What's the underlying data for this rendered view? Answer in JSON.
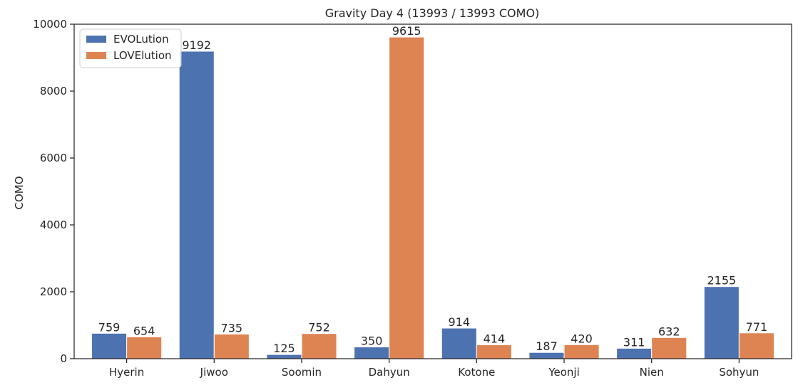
{
  "chart_data": {
    "type": "bar",
    "title": "Gravity Day 4 (13993 / 13993 COMO)",
    "xlabel": "",
    "ylabel": "COMO",
    "ylim": [
      0,
      10000
    ],
    "yticks": [
      "0",
      "2000",
      "4000",
      "6000",
      "8000",
      "10000"
    ],
    "categories": [
      "Hyerin",
      "Jiwoo",
      "Soomin",
      "Dahyun",
      "Kotone",
      "Yeonji",
      "Nien",
      "Sohyun"
    ],
    "series": [
      {
        "name": "EVOLution",
        "color": "#4c72b0",
        "values": [
          759,
          9192,
          125,
          350,
          914,
          187,
          311,
          2155
        ]
      },
      {
        "name": "LOVElution",
        "color": "#dd8452",
        "values": [
          654,
          735,
          752,
          9615,
          414,
          420,
          632,
          771
        ]
      }
    ],
    "legend": "top-left",
    "grid": false
  }
}
